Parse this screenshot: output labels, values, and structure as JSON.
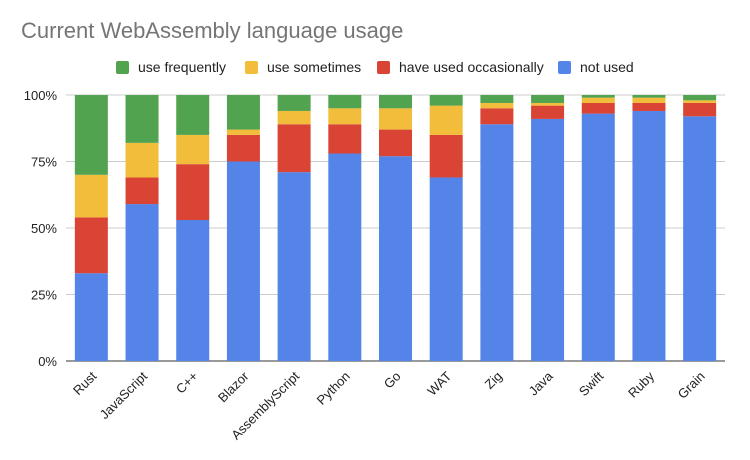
{
  "chart_data": {
    "type": "bar",
    "stacked": true,
    "normalized": true,
    "title": "Current WebAssembly language usage",
    "xlabel": "",
    "ylabel": "",
    "ylim": [
      0,
      100
    ],
    "yticks": [
      "0%",
      "25%",
      "50%",
      "75%",
      "100%"
    ],
    "ytick_values": [
      0,
      25,
      50,
      75,
      100
    ],
    "legend_position": "top",
    "grid": "horizontal",
    "categories": [
      "Rust",
      "JavaScript",
      "C++",
      "Blazor",
      "AssemblyScript",
      "Python",
      "Go",
      "WAT",
      "Zig",
      "Java",
      "Swift",
      "Ruby",
      "Grain"
    ],
    "series": [
      {
        "name": "not used",
        "color": "#5484e8",
        "values": [
          33,
          59,
          53,
          75,
          71,
          78,
          77,
          69,
          89,
          91,
          93,
          94,
          92
        ]
      },
      {
        "name": "have used occasionally",
        "color": "#d94435",
        "values": [
          21,
          10,
          21,
          10,
          18,
          11,
          10,
          16,
          6,
          5,
          4,
          3,
          5
        ]
      },
      {
        "name": "use sometimes",
        "color": "#f2bd3a",
        "values": [
          16,
          13,
          11,
          2,
          5,
          6,
          8,
          11,
          2,
          1,
          2,
          2,
          1
        ]
      },
      {
        "name": "use frequently",
        "color": "#52a350",
        "values": [
          30,
          18,
          15,
          13,
          6,
          5,
          5,
          4,
          3,
          3,
          1,
          1,
          2
        ]
      }
    ],
    "legend_order": [
      "use frequently",
      "use sometimes",
      "have used occasionally",
      "not used"
    ]
  }
}
